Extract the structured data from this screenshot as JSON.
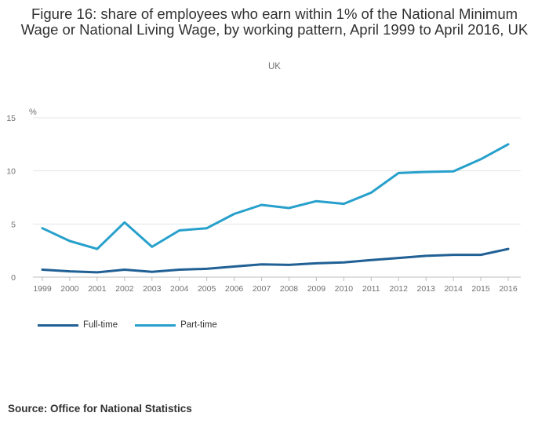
{
  "title": "Figure 16: share of employees who earn within 1% of the National Minimum Wage or National Living Wage, by working pattern, April 1999 to April 2016, UK",
  "subtitle": "UK",
  "source": "Source: Office for National Statistics",
  "colors": {
    "full_time": "#206095",
    "part_time": "#27a0cc",
    "grid": "#e4e4e4",
    "axis_text": "#707071"
  },
  "chart_data": {
    "type": "line",
    "title": "Figure 16: share of employees who earn within 1% of the National Minimum Wage or National Living Wage, by working pattern, April 1999 to April 2016, UK",
    "ylabel": "%",
    "xlabel": "",
    "ylim": [
      0,
      15
    ],
    "yticks": [
      0,
      5,
      10,
      15
    ],
    "categories": [
      "1999",
      "2000",
      "2001",
      "2002",
      "2003",
      "2004",
      "2005",
      "2006",
      "2007",
      "2008",
      "2009",
      "2010",
      "2011",
      "2012",
      "2013",
      "2014",
      "2015",
      "2016"
    ],
    "series": [
      {
        "name": "Full-time",
        "color": "#206095",
        "values": [
          0.7,
          0.55,
          0.45,
          0.7,
          0.5,
          0.7,
          0.78,
          1.0,
          1.2,
          1.15,
          1.3,
          1.38,
          1.6,
          1.8,
          2.0,
          2.1,
          2.1,
          2.65
        ]
      },
      {
        "name": "Part-time",
        "color": "#27a0cc",
        "values": [
          4.6,
          3.4,
          2.65,
          5.15,
          2.85,
          4.4,
          4.6,
          5.95,
          6.8,
          6.5,
          7.15,
          6.9,
          7.95,
          9.8,
          9.9,
          9.95,
          11.1,
          12.5
        ]
      }
    ],
    "legend_position": "bottom-left"
  }
}
